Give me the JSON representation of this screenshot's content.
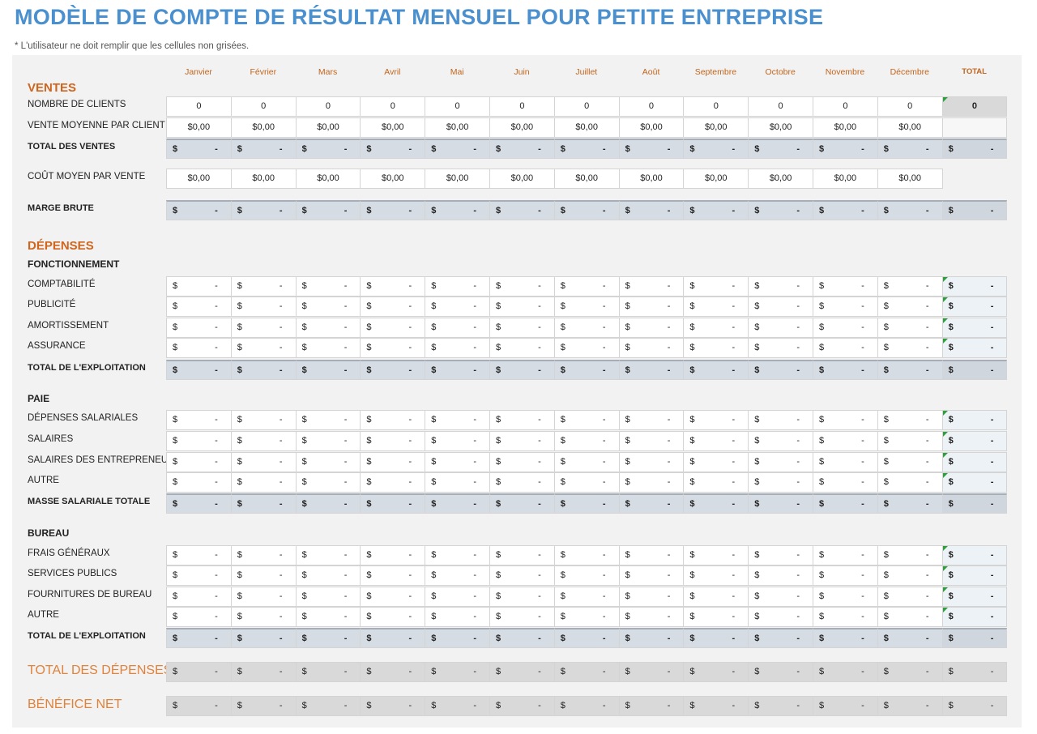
{
  "header": {
    "title": "MODÈLE DE COMPTE DE RÉSULTAT MENSUEL POUR PETITE ENTREPRISE",
    "note": "* L'utilisateur ne doit remplir que les cellules non grisées."
  },
  "columns": [
    "Janvier",
    "Février",
    "Mars",
    "Avril",
    "Mai",
    "Juin",
    "Juillet",
    "Août",
    "Septembre",
    "Octobre",
    "Novembre",
    "Décembre",
    "TOTAL"
  ],
  "rows": [
    {
      "label": "VENTES"
    },
    {
      "label": "NOMBRE DE CLIENTS",
      "cells": [
        "0",
        "0",
        "0",
        "0",
        "0",
        "0",
        "0",
        "0",
        "0",
        "0",
        "0",
        "0",
        "0"
      ]
    },
    {
      "label": "VENTE MOYENNE PAR CLIENT",
      "cells": [
        "$0,00",
        "$0,00",
        "$0,00",
        "$0,00",
        "$0,00",
        "$0,00",
        "$0,00",
        "$0,00",
        "$0,00",
        "$0,00",
        "$0,00",
        "$0,00"
      ]
    },
    {
      "label": "TOTAL DES VENTES",
      "cells": [
        [
          "$",
          "-"
        ],
        [
          "$",
          "-"
        ],
        [
          "$",
          "-"
        ],
        [
          "$",
          "-"
        ],
        [
          "$",
          "-"
        ],
        [
          "$",
          "-"
        ],
        [
          "$",
          "-"
        ],
        [
          "$",
          "-"
        ],
        [
          "$",
          "-"
        ],
        [
          "$",
          "-"
        ],
        [
          "$",
          "-"
        ],
        [
          "$",
          "-"
        ],
        [
          "$",
          "-"
        ]
      ]
    },
    {
      "label": "COÛT MOYEN PAR VENTE",
      "cells": [
        "$0,00",
        "$0,00",
        "$0,00",
        "$0,00",
        "$0,00",
        "$0,00",
        "$0,00",
        "$0,00",
        "$0,00",
        "$0,00",
        "$0,00",
        "$0,00"
      ]
    },
    {
      "label": "MARGE BRUTE",
      "cells": [
        [
          "$",
          "-"
        ],
        [
          "$",
          "-"
        ],
        [
          "$",
          "-"
        ],
        [
          "$",
          "-"
        ],
        [
          "$",
          "-"
        ],
        [
          "$",
          "-"
        ],
        [
          "$",
          "-"
        ],
        [
          "$",
          "-"
        ],
        [
          "$",
          "-"
        ],
        [
          "$",
          "-"
        ],
        [
          "$",
          "-"
        ],
        [
          "$",
          "-"
        ],
        [
          "$",
          "-"
        ]
      ]
    },
    {
      "label": "DÉPENSES"
    },
    {
      "label": "FONCTIONNEMENT"
    },
    {
      "label": "COMPTABILITÉ",
      "cells": [
        [
          "$",
          "-"
        ],
        [
          "$",
          "-"
        ],
        [
          "$",
          "-"
        ],
        [
          "$",
          "-"
        ],
        [
          "$",
          "-"
        ],
        [
          "$",
          "-"
        ],
        [
          "$",
          "-"
        ],
        [
          "$",
          "-"
        ],
        [
          "$",
          "-"
        ],
        [
          "$",
          "-"
        ],
        [
          "$",
          "-"
        ],
        [
          "$",
          "-"
        ],
        [
          "$",
          "-"
        ]
      ]
    },
    {
      "label": "PUBLICITÉ",
      "cells": [
        [
          "$",
          "-"
        ],
        [
          "$",
          "-"
        ],
        [
          "$",
          "-"
        ],
        [
          "$",
          "-"
        ],
        [
          "$",
          "-"
        ],
        [
          "$",
          "-"
        ],
        [
          "$",
          "-"
        ],
        [
          "$",
          "-"
        ],
        [
          "$",
          "-"
        ],
        [
          "$",
          "-"
        ],
        [
          "$",
          "-"
        ],
        [
          "$",
          "-"
        ],
        [
          "$",
          "-"
        ]
      ]
    },
    {
      "label": "AMORTISSEMENT",
      "cells": [
        [
          "$",
          "-"
        ],
        [
          "$",
          "-"
        ],
        [
          "$",
          "-"
        ],
        [
          "$",
          "-"
        ],
        [
          "$",
          "-"
        ],
        [
          "$",
          "-"
        ],
        [
          "$",
          "-"
        ],
        [
          "$",
          "-"
        ],
        [
          "$",
          "-"
        ],
        [
          "$",
          "-"
        ],
        [
          "$",
          "-"
        ],
        [
          "$",
          "-"
        ],
        [
          "$",
          "-"
        ]
      ]
    },
    {
      "label": "ASSURANCE",
      "cells": [
        [
          "$",
          "-"
        ],
        [
          "$",
          "-"
        ],
        [
          "$",
          "-"
        ],
        [
          "$",
          "-"
        ],
        [
          "$",
          "-"
        ],
        [
          "$",
          "-"
        ],
        [
          "$",
          "-"
        ],
        [
          "$",
          "-"
        ],
        [
          "$",
          "-"
        ],
        [
          "$",
          "-"
        ],
        [
          "$",
          "-"
        ],
        [
          "$",
          "-"
        ],
        [
          "$",
          "-"
        ]
      ]
    },
    {
      "label": "TOTAL DE L'EXPLOITATION",
      "cells": [
        [
          "$",
          "-"
        ],
        [
          "$",
          "-"
        ],
        [
          "$",
          "-"
        ],
        [
          "$",
          "-"
        ],
        [
          "$",
          "-"
        ],
        [
          "$",
          "-"
        ],
        [
          "$",
          "-"
        ],
        [
          "$",
          "-"
        ],
        [
          "$",
          "-"
        ],
        [
          "$",
          "-"
        ],
        [
          "$",
          "-"
        ],
        [
          "$",
          "-"
        ],
        [
          "$",
          "-"
        ]
      ]
    },
    {
      "label": "PAIE"
    },
    {
      "label": "DÉPENSES SALARIALES",
      "cells": [
        [
          "$",
          "-"
        ],
        [
          "$",
          "-"
        ],
        [
          "$",
          "-"
        ],
        [
          "$",
          "-"
        ],
        [
          "$",
          "-"
        ],
        [
          "$",
          "-"
        ],
        [
          "$",
          "-"
        ],
        [
          "$",
          "-"
        ],
        [
          "$",
          "-"
        ],
        [
          "$",
          "-"
        ],
        [
          "$",
          "-"
        ],
        [
          "$",
          "-"
        ],
        [
          "$",
          "-"
        ]
      ]
    },
    {
      "label": "SALAIRES",
      "cells": [
        [
          "$",
          "-"
        ],
        [
          "$",
          "-"
        ],
        [
          "$",
          "-"
        ],
        [
          "$",
          "-"
        ],
        [
          "$",
          "-"
        ],
        [
          "$",
          "-"
        ],
        [
          "$",
          "-"
        ],
        [
          "$",
          "-"
        ],
        [
          "$",
          "-"
        ],
        [
          "$",
          "-"
        ],
        [
          "$",
          "-"
        ],
        [
          "$",
          "-"
        ],
        [
          "$",
          "-"
        ]
      ]
    },
    {
      "label": "SALAIRES DES ENTREPRENEURS",
      "cells": [
        [
          "$",
          "-"
        ],
        [
          "$",
          "-"
        ],
        [
          "$",
          "-"
        ],
        [
          "$",
          "-"
        ],
        [
          "$",
          "-"
        ],
        [
          "$",
          "-"
        ],
        [
          "$",
          "-"
        ],
        [
          "$",
          "-"
        ],
        [
          "$",
          "-"
        ],
        [
          "$",
          "-"
        ],
        [
          "$",
          "-"
        ],
        [
          "$",
          "-"
        ],
        [
          "$",
          "-"
        ]
      ]
    },
    {
      "label": "AUTRE",
      "cells": [
        [
          "$",
          "-"
        ],
        [
          "$",
          "-"
        ],
        [
          "$",
          "-"
        ],
        [
          "$",
          "-"
        ],
        [
          "$",
          "-"
        ],
        [
          "$",
          "-"
        ],
        [
          "$",
          "-"
        ],
        [
          "$",
          "-"
        ],
        [
          "$",
          "-"
        ],
        [
          "$",
          "-"
        ],
        [
          "$",
          "-"
        ],
        [
          "$",
          "-"
        ],
        [
          "$",
          "-"
        ]
      ]
    },
    {
      "label": "MASSE SALARIALE TOTALE",
      "cells": [
        [
          "$",
          "-"
        ],
        [
          "$",
          "-"
        ],
        [
          "$",
          "-"
        ],
        [
          "$",
          "-"
        ],
        [
          "$",
          "-"
        ],
        [
          "$",
          "-"
        ],
        [
          "$",
          "-"
        ],
        [
          "$",
          "-"
        ],
        [
          "$",
          "-"
        ],
        [
          "$",
          "-"
        ],
        [
          "$",
          "-"
        ],
        [
          "$",
          "-"
        ],
        [
          "$",
          "-"
        ]
      ]
    },
    {
      "label": "BUREAU"
    },
    {
      "label": "FRAIS GÉNÉRAUX",
      "cells": [
        [
          "$",
          "-"
        ],
        [
          "$",
          "-"
        ],
        [
          "$",
          "-"
        ],
        [
          "$",
          "-"
        ],
        [
          "$",
          "-"
        ],
        [
          "$",
          "-"
        ],
        [
          "$",
          "-"
        ],
        [
          "$",
          "-"
        ],
        [
          "$",
          "-"
        ],
        [
          "$",
          "-"
        ],
        [
          "$",
          "-"
        ],
        [
          "$",
          "-"
        ],
        [
          "$",
          "-"
        ]
      ]
    },
    {
      "label": "SERVICES PUBLICS",
      "cells": [
        [
          "$",
          "-"
        ],
        [
          "$",
          "-"
        ],
        [
          "$",
          "-"
        ],
        [
          "$",
          "-"
        ],
        [
          "$",
          "-"
        ],
        [
          "$",
          "-"
        ],
        [
          "$",
          "-"
        ],
        [
          "$",
          "-"
        ],
        [
          "$",
          "-"
        ],
        [
          "$",
          "-"
        ],
        [
          "$",
          "-"
        ],
        [
          "$",
          "-"
        ],
        [
          "$",
          "-"
        ]
      ]
    },
    {
      "label": "FOURNITURES DE BUREAU",
      "cells": [
        [
          "$",
          "-"
        ],
        [
          "$",
          "-"
        ],
        [
          "$",
          "-"
        ],
        [
          "$",
          "-"
        ],
        [
          "$",
          "-"
        ],
        [
          "$",
          "-"
        ],
        [
          "$",
          "-"
        ],
        [
          "$",
          "-"
        ],
        [
          "$",
          "-"
        ],
        [
          "$",
          "-"
        ],
        [
          "$",
          "-"
        ],
        [
          "$",
          "-"
        ],
        [
          "$",
          "-"
        ]
      ]
    },
    {
      "label": "AUTRE",
      "cells": [
        [
          "$",
          "-"
        ],
        [
          "$",
          "-"
        ],
        [
          "$",
          "-"
        ],
        [
          "$",
          "-"
        ],
        [
          "$",
          "-"
        ],
        [
          "$",
          "-"
        ],
        [
          "$",
          "-"
        ],
        [
          "$",
          "-"
        ],
        [
          "$",
          "-"
        ],
        [
          "$",
          "-"
        ],
        [
          "$",
          "-"
        ],
        [
          "$",
          "-"
        ],
        [
          "$",
          "-"
        ]
      ]
    },
    {
      "label": "TOTAL DE L'EXPLOITATION",
      "cells": [
        [
          "$",
          "-"
        ],
        [
          "$",
          "-"
        ],
        [
          "$",
          "-"
        ],
        [
          "$",
          "-"
        ],
        [
          "$",
          "-"
        ],
        [
          "$",
          "-"
        ],
        [
          "$",
          "-"
        ],
        [
          "$",
          "-"
        ],
        [
          "$",
          "-"
        ],
        [
          "$",
          "-"
        ],
        [
          "$",
          "-"
        ],
        [
          "$",
          "-"
        ],
        [
          "$",
          "-"
        ]
      ]
    },
    {
      "label": "TOTAL DES DÉPENSES",
      "cells": [
        [
          "$",
          "-"
        ],
        [
          "$",
          "-"
        ],
        [
          "$",
          "-"
        ],
        [
          "$",
          "-"
        ],
        [
          "$",
          "-"
        ],
        [
          "$",
          "-"
        ],
        [
          "$",
          "-"
        ],
        [
          "$",
          "-"
        ],
        [
          "$",
          "-"
        ],
        [
          "$",
          "-"
        ],
        [
          "$",
          "-"
        ],
        [
          "$",
          "-"
        ],
        [
          "$",
          "-"
        ]
      ]
    },
    {
      "label": "BÉNÉFICE NET",
      "cells": [
        [
          "$",
          "-"
        ],
        [
          "$",
          "-"
        ],
        [
          "$",
          "-"
        ],
        [
          "$",
          "-"
        ],
        [
          "$",
          "-"
        ],
        [
          "$",
          "-"
        ],
        [
          "$",
          "-"
        ],
        [
          "$",
          "-"
        ],
        [
          "$",
          "-"
        ],
        [
          "$",
          "-"
        ],
        [
          "$",
          "-"
        ],
        [
          "$",
          "-"
        ],
        [
          "$",
          "-"
        ]
      ]
    }
  ]
}
